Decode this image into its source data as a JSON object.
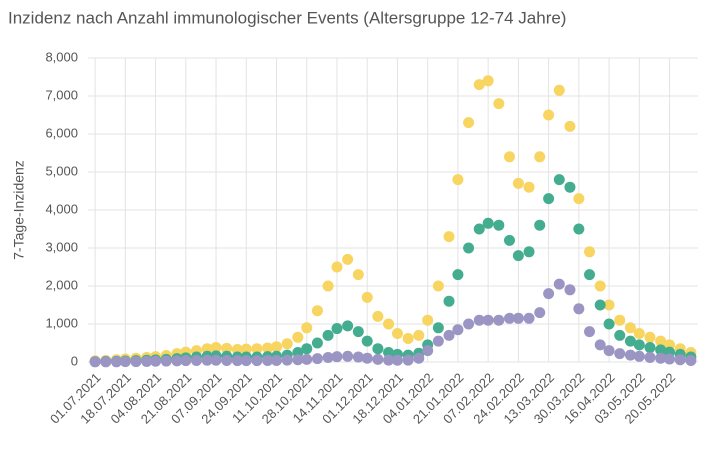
{
  "chart_data": {
    "type": "scatter",
    "title": "Inzidenz nach Anzahl immunologischer Events (Altersgruppe 12-74 Jahre)",
    "y_label": "7-Tage-Inzidenz",
    "x": [
      "01.07.2021",
      "07.07.2021",
      "13.07.2021",
      "18.07.2021",
      "24.07.2021",
      "30.07.2021",
      "04.08.2021",
      "10.08.2021",
      "16.08.2021",
      "21.08.2021",
      "27.08.2021",
      "02.09.2021",
      "07.09.2021",
      "13.09.2021",
      "19.09.2021",
      "24.09.2021",
      "30.09.2021",
      "06.10.2021",
      "11.10.2021",
      "17.10.2021",
      "23.10.2021",
      "28.10.2021",
      "03.11.2021",
      "09.11.2021",
      "14.11.2021",
      "20.11.2021",
      "26.11.2021",
      "01.12.2021",
      "07.12.2021",
      "13.12.2021",
      "18.12.2021",
      "24.12.2021",
      "30.12.2021",
      "04.01.2022",
      "10.01.2022",
      "16.01.2022",
      "21.01.2022",
      "27.01.2022",
      "02.02.2022",
      "07.02.2022",
      "13.02.2022",
      "19.02.2022",
      "24.02.2022",
      "02.03.2022",
      "08.03.2022",
      "13.03.2022",
      "19.03.2022",
      "25.03.2022",
      "30.03.2022",
      "05.04.2022",
      "11.04.2022",
      "16.04.2022",
      "22.04.2022",
      "28.04.2022",
      "03.05.2022",
      "09.05.2022",
      "15.05.2022",
      "20.05.2022",
      "26.05.2022",
      "01.06.2022"
    ],
    "series": [
      {
        "color": "#f7d560",
        "values": [
          30,
          40,
          60,
          80,
          100,
          120,
          140,
          170,
          220,
          260,
          300,
          350,
          380,
          360,
          330,
          340,
          350,
          370,
          400,
          480,
          650,
          900,
          1350,
          2000,
          2500,
          2700,
          2300,
          1700,
          1200,
          1000,
          750,
          620,
          700,
          1100,
          2000,
          3300,
          4800,
          6300,
          7300,
          7400,
          6800,
          5400,
          4700,
          4600,
          5400,
          6500,
          7150,
          6200,
          4300,
          2900,
          2000,
          1500,
          1100,
          900,
          750,
          650,
          550,
          450,
          350,
          250
        ]
      },
      {
        "color": "#45ad8f",
        "values": [
          10,
          15,
          20,
          25,
          35,
          45,
          55,
          70,
          90,
          110,
          130,
          150,
          160,
          150,
          130,
          130,
          130,
          140,
          150,
          180,
          250,
          350,
          500,
          700,
          880,
          950,
          800,
          550,
          350,
          250,
          200,
          180,
          230,
          450,
          900,
          1600,
          2300,
          3000,
          3500,
          3650,
          3600,
          3200,
          2800,
          2900,
          3600,
          4300,
          4800,
          4600,
          3500,
          2300,
          1500,
          1000,
          700,
          550,
          450,
          380,
          320,
          260,
          200,
          130
        ]
      },
      {
        "color": "#9b95c4",
        "values": [
          5,
          5,
          5,
          10,
          10,
          15,
          20,
          25,
          30,
          35,
          40,
          45,
          45,
          40,
          35,
          35,
          35,
          40,
          40,
          50,
          60,
          70,
          90,
          120,
          140,
          150,
          130,
          100,
          70,
          50,
          45,
          50,
          100,
          300,
          550,
          700,
          850,
          1000,
          1100,
          1100,
          1100,
          1150,
          1150,
          1150,
          1300,
          1800,
          2050,
          1900,
          1400,
          800,
          450,
          300,
          220,
          180,
          150,
          120,
          100,
          80,
          60,
          40
        ]
      }
    ],
    "xlim": [
      "27.06.2021",
      "05.06.2022"
    ],
    "xticks": [
      "01.07.2021",
      "18.07.2021",
      "04.08.2021",
      "21.08.2021",
      "07.09.2021",
      "24.09.2021",
      "11.10.2021",
      "28.10.2021",
      "14.11.2021",
      "01.12.2021",
      "18.12.2021",
      "04.01.2022",
      "21.01.2022",
      "07.02.2022",
      "24.02.2022",
      "13.03.2022",
      "30.03.2022",
      "16.04.2022",
      "03.05.2022",
      "20.05.2022"
    ],
    "ylim": [
      0,
      8000
    ],
    "yticks": [
      0,
      {
        "value": 1000,
        "label": "1,000"
      },
      {
        "value": 2000,
        "label": "2,000"
      },
      {
        "value": 3000,
        "label": "3,000"
      },
      {
        "value": 4000,
        "label": "4,000"
      },
      {
        "value": 5000,
        "label": "5,000"
      },
      {
        "value": 6000,
        "label": "6,000"
      },
      {
        "value": 7000,
        "label": "7,000"
      },
      {
        "value": 8000,
        "label": "8,000"
      }
    ],
    "grid": true
  }
}
